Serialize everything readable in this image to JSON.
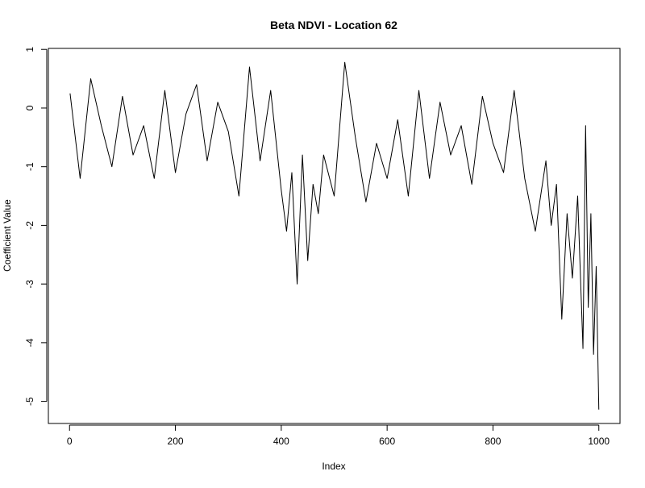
{
  "chart_data": {
    "type": "line",
    "title": "Beta NDVI - Location 62",
    "xlabel": "Index",
    "ylabel": "Coefficient Value",
    "xlim": [
      0,
      1000
    ],
    "ylim": [
      -5.14,
      0.78
    ],
    "x_ticks": [
      0,
      200,
      400,
      600,
      800,
      1000
    ],
    "x_tick_labels": [
      "0",
      "200",
      "400",
      "600",
      "800",
      "1000"
    ],
    "y_ticks": [
      1,
      0,
      -1,
      -2,
      -3,
      -4,
      -5
    ],
    "y_tick_labels": [
      "1",
      "0",
      "-1",
      "-2",
      "-3",
      "-4",
      "-5"
    ],
    "grid": false,
    "legend": "none",
    "line_color": "#000000",
    "series": [
      {
        "x": [
          1,
          20,
          40,
          60,
          80,
          100,
          120,
          140,
          160,
          180,
          200,
          220,
          240,
          260,
          280,
          300,
          320,
          340,
          360,
          380,
          400,
          410,
          420,
          430,
          440,
          450,
          460,
          470,
          480,
          500,
          520,
          540,
          560,
          580,
          600,
          620,
          640,
          660,
          680,
          700,
          720,
          740,
          760,
          780,
          800,
          820,
          840,
          860,
          880,
          900,
          910,
          920,
          930,
          940,
          950,
          960,
          970,
          975,
          980,
          985,
          990,
          995,
          1000
        ],
        "y": [
          0.25,
          -1.2,
          0.5,
          -0.3,
          -1.0,
          0.2,
          -0.8,
          -0.3,
          -1.2,
          0.3,
          -1.1,
          -0.1,
          0.4,
          -0.9,
          0.1,
          -0.4,
          -1.5,
          0.7,
          -0.9,
          0.3,
          -1.4,
          -2.1,
          -1.1,
          -3.0,
          -0.8,
          -2.6,
          -1.3,
          -1.8,
          -0.8,
          -1.5,
          0.78,
          -0.5,
          -1.6,
          -0.6,
          -1.2,
          -0.2,
          -1.5,
          0.3,
          -1.2,
          0.1,
          -0.8,
          -0.3,
          -1.3,
          0.2,
          -0.6,
          -1.1,
          0.3,
          -1.2,
          -2.1,
          -0.9,
          -2.0,
          -1.3,
          -3.6,
          -1.8,
          -2.9,
          -1.5,
          -4.1,
          -0.3,
          -3.4,
          -1.8,
          -4.2,
          -2.7,
          -5.14
        ]
      }
    ]
  }
}
